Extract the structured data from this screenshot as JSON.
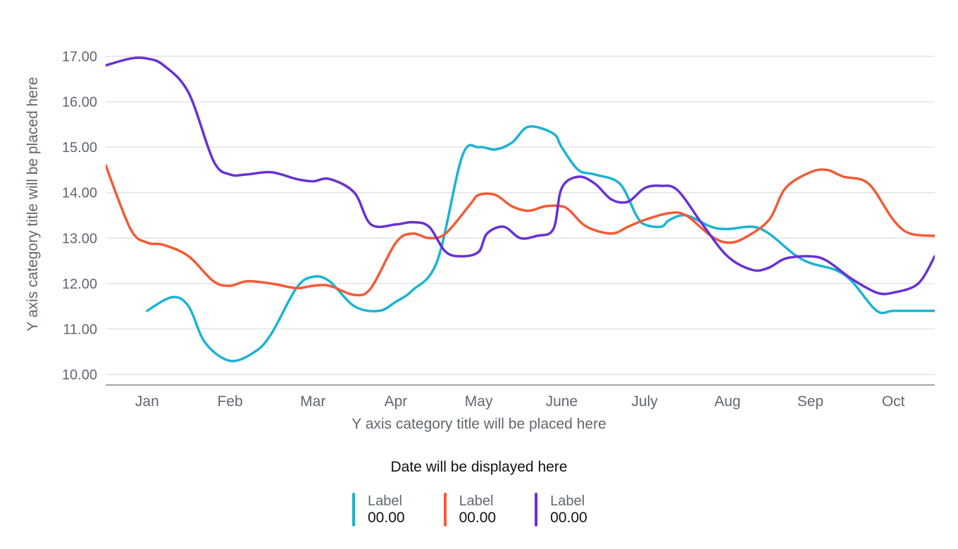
{
  "chart_data": {
    "type": "line",
    "xlabel": "Y axis category title will be placed here",
    "ylabel": "Y axis category title will be placed here",
    "categories": [
      "Jan",
      "Feb",
      "Mar",
      "Apr",
      "May",
      "June",
      "July",
      "Aug",
      "Sep",
      "Oct"
    ],
    "ylim": [
      10,
      17
    ],
    "yticks": [
      "10.00",
      "11.00",
      "12.00",
      "13.00",
      "14.00",
      "15.00",
      "16.00",
      "17.00"
    ],
    "grid": true,
    "smooth": true,
    "series": [
      {
        "color": "#1ab3d6",
        "x": [
          0.0,
          0.3,
          0.5,
          0.7,
          1.0,
          1.3,
          1.5,
          1.8,
          2.0,
          2.2,
          2.5,
          2.8,
          3.0,
          3.2,
          3.5,
          3.8,
          4.0,
          4.2,
          4.4,
          4.6,
          4.9,
          5.0,
          5.2,
          5.4,
          5.7,
          5.9,
          6.0,
          6.2,
          6.3,
          6.5,
          6.8,
          7.0,
          7.3,
          7.5,
          7.8,
          8.0,
          8.3,
          8.5,
          8.8,
          9.0,
          9.3,
          9.5
        ],
        "values": [
          11.4,
          11.7,
          11.5,
          10.7,
          10.3,
          10.5,
          10.9,
          11.9,
          12.15,
          12.05,
          11.5,
          11.4,
          11.6,
          11.85,
          12.5,
          14.8,
          15.0,
          14.95,
          15.1,
          15.45,
          15.3,
          15.0,
          14.5,
          14.4,
          14.2,
          13.5,
          13.3,
          13.25,
          13.4,
          13.5,
          13.25,
          13.2,
          13.25,
          13.1,
          12.65,
          12.45,
          12.3,
          12.05,
          11.4,
          11.4,
          11.4,
          11.4
        ],
        "legend_label": "Label",
        "legend_value": "00.00"
      },
      {
        "color": "#f45a36",
        "x": [
          -0.5,
          -0.2,
          0.0,
          0.2,
          0.5,
          0.8,
          1.0,
          1.2,
          1.5,
          1.8,
          2.0,
          2.2,
          2.5,
          2.7,
          3.0,
          3.2,
          3.4,
          3.6,
          3.9,
          4.0,
          4.2,
          4.4,
          4.6,
          4.8,
          5.0,
          5.1,
          5.3,
          5.6,
          5.8,
          6.0,
          6.3,
          6.5,
          6.8,
          7.0,
          7.2,
          7.5,
          7.7,
          8.0,
          8.2,
          8.4,
          8.7,
          9.0,
          9.2,
          9.5
        ],
        "values": [
          14.6,
          13.2,
          12.9,
          12.85,
          12.6,
          12.05,
          11.95,
          12.05,
          12.0,
          11.9,
          11.95,
          11.95,
          11.75,
          11.9,
          12.9,
          13.1,
          13.0,
          13.1,
          13.75,
          13.95,
          13.95,
          13.7,
          13.6,
          13.7,
          13.7,
          13.6,
          13.25,
          13.1,
          13.25,
          13.4,
          13.55,
          13.5,
          13.05,
          12.9,
          13.0,
          13.4,
          14.1,
          14.45,
          14.5,
          14.35,
          14.2,
          13.4,
          13.1,
          13.05
        ],
        "legend_label": "Label",
        "legend_value": "00.00"
      },
      {
        "color": "#6930d6",
        "x": [
          -0.5,
          -0.2,
          0.0,
          0.2,
          0.5,
          0.8,
          1.0,
          1.2,
          1.5,
          1.8,
          2.0,
          2.2,
          2.5,
          2.7,
          3.0,
          3.2,
          3.4,
          3.6,
          3.8,
          4.0,
          4.1,
          4.3,
          4.5,
          4.7,
          4.9,
          5.0,
          5.2,
          5.4,
          5.6,
          5.8,
          6.0,
          6.2,
          6.4,
          6.7,
          7.0,
          7.3,
          7.5,
          7.7,
          8.0,
          8.2,
          8.5,
          8.8,
          9.0,
          9.3,
          9.5
        ],
        "values": [
          16.8,
          16.95,
          16.95,
          16.8,
          16.2,
          14.7,
          14.4,
          14.4,
          14.45,
          14.3,
          14.25,
          14.3,
          14.0,
          13.3,
          13.3,
          13.35,
          13.25,
          12.7,
          12.6,
          12.7,
          13.1,
          13.25,
          13.0,
          13.05,
          13.2,
          14.1,
          14.35,
          14.2,
          13.85,
          13.8,
          14.1,
          14.15,
          14.05,
          13.3,
          12.6,
          12.3,
          12.35,
          12.55,
          12.6,
          12.5,
          12.1,
          11.8,
          11.8,
          12.0,
          12.6
        ],
        "legend_label": "Label",
        "legend_value": "00.00"
      }
    ]
  },
  "footer": {
    "date_text": "Date will be displayed here"
  }
}
